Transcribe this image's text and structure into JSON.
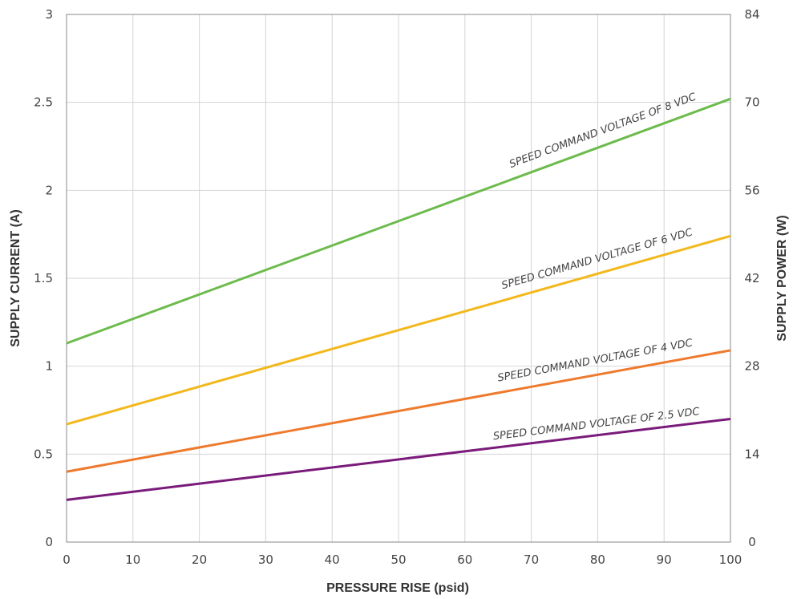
{
  "chart_data": {
    "type": "line",
    "xlabel": "PRESSURE RISE (psid)",
    "ylabel": "SUPPLY CURRENT (A)",
    "y2label": "SUPPLY POWER (W)",
    "xlim": [
      0,
      100
    ],
    "ylim": [
      0,
      3
    ],
    "y2lim": [
      0,
      84
    ],
    "x_ticks": [
      "0",
      "10",
      "20",
      "30",
      "40",
      "50",
      "60",
      "70",
      "80",
      "90",
      "100"
    ],
    "y_ticks": [
      "0",
      "0.5",
      "1",
      "1.5",
      "2",
      "2.5",
      "3"
    ],
    "y2_ticks": [
      "0",
      "14",
      "28",
      "42",
      "56",
      "70",
      "84"
    ],
    "grid": true,
    "series": [
      {
        "name": "SPEED COMMAND VOLTAGE OF 8 VDC",
        "color": "#6cbb4c",
        "points": [
          {
            "x": 0,
            "y": 1.13
          },
          {
            "x": 100,
            "y": 2.52
          }
        ]
      },
      {
        "name": "SPEED COMMAND VOLTAGE OF 6 VDC",
        "color": "#f2b81c",
        "points": [
          {
            "x": 0,
            "y": 0.67
          },
          {
            "x": 100,
            "y": 1.74
          }
        ]
      },
      {
        "name": "SPEED COMMAND VOLTAGE OF 4 VDC",
        "color": "#ee7a2e",
        "points": [
          {
            "x": 0,
            "y": 0.4
          },
          {
            "x": 100,
            "y": 1.09
          }
        ]
      },
      {
        "name": "SPEED COMMAND VOLTAGE OF 2.5 VDC",
        "color": "#7a1a7a",
        "points": [
          {
            "x": 0,
            "y": 0.24
          },
          {
            "x": 100,
            "y": 0.7
          }
        ]
      }
    ]
  }
}
